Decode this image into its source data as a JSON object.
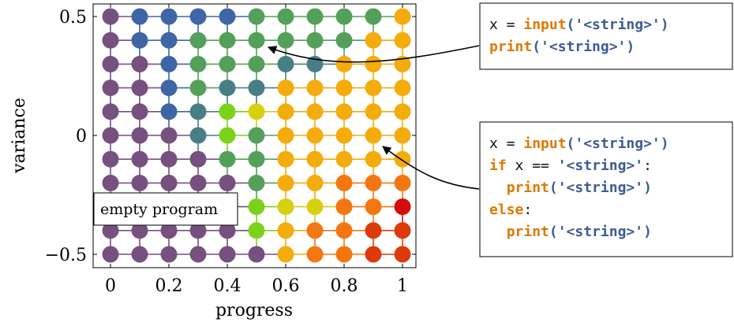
{
  "chart_data": {
    "type": "scatter",
    "xlabel": "progress",
    "ylabel": "variance",
    "xlim": [
      -0.05,
      1.05
    ],
    "ylim": [
      -0.55,
      0.55
    ],
    "x_ticks": [
      {
        "value": 0,
        "label": "0"
      },
      {
        "value": 0.2,
        "label": "0.2"
      },
      {
        "value": 0.4,
        "label": "0.4"
      },
      {
        "value": 0.6,
        "label": "0.6"
      },
      {
        "value": 0.8,
        "label": "0.8"
      },
      {
        "value": 1,
        "label": "1"
      }
    ],
    "y_ticks": [
      {
        "value": 0.5,
        "label": "0.5"
      },
      {
        "value": 0,
        "label": "0"
      },
      {
        "value": -0.5,
        "label": "−0.5"
      }
    ],
    "x": [
      0,
      0.1,
      0.2,
      0.3,
      0.4,
      0.5,
      0.6,
      0.7,
      0.8,
      0.9,
      1.0
    ],
    "y": [
      0.5,
      0.4,
      0.3,
      0.2,
      0.1,
      0,
      -0.1,
      -0.2,
      -0.3,
      -0.4,
      -0.5
    ],
    "palette": {
      "P": "#76507f",
      "B": "#3e65a6",
      "T": "#477f84",
      "G": "#54a05a",
      "L": "#7cd11b",
      "Y": "#d6d011",
      "O": "#f3ac0c",
      "D": "#f47610",
      "R": "#dd3a0a",
      "K": "#d20d0b"
    },
    "grid": [
      "PBBBBGGGGGO",
      "PBBGGGGGGOO",
      "PPBGGGTTOOO",
      "PPBGTTOOOOO",
      "PPBTLYOOOOO",
      "PPPTLGOOOOO",
      "PPPPGGOOOOO",
      "PPPPPGOODDD",
      "PPPPPLYYDDK",
      "PPPPPLODDRR",
      "PPPPPPODDRR"
    ],
    "annotations": {
      "empty_program": "empty program",
      "program1": [
        [
          {
            "t": "x = ",
            "c": "plain"
          },
          {
            "t": "input",
            "c": "kw"
          },
          {
            "t": "('<string>')",
            "c": "str"
          }
        ],
        [
          {
            "t": "print",
            "c": "kw"
          },
          {
            "t": "('<string>')",
            "c": "str"
          }
        ]
      ],
      "program2": [
        [
          {
            "t": "x = ",
            "c": "plain"
          },
          {
            "t": "input",
            "c": "kw"
          },
          {
            "t": "('<string>')",
            "c": "str"
          }
        ],
        [
          {
            "t": "if",
            "c": "kw"
          },
          {
            "t": " x == ",
            "c": "plain"
          },
          {
            "t": "'<string>'",
            "c": "str"
          },
          {
            "t": ":",
            "c": "plain"
          }
        ],
        [
          {
            "t": "  ",
            "c": "plain"
          },
          {
            "t": "print",
            "c": "kw"
          },
          {
            "t": "('<string>')",
            "c": "str"
          }
        ],
        [
          {
            "t": "else",
            "c": "kw"
          },
          {
            "t": ":",
            "c": "plain"
          }
        ],
        [
          {
            "t": "  ",
            "c": "plain"
          },
          {
            "t": "print",
            "c": "kw"
          },
          {
            "t": "('<string>')",
            "c": "str"
          }
        ]
      ]
    },
    "colors": {
      "keyword": "#e07800",
      "string": "#3d5b96",
      "plain": "#111111"
    }
  }
}
